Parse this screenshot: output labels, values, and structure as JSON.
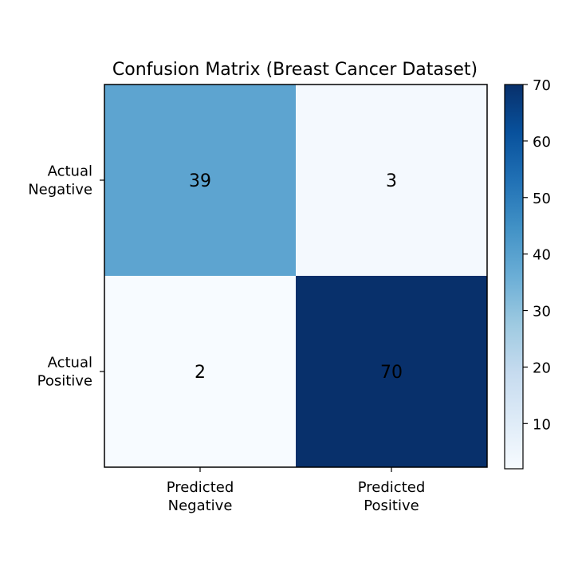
{
  "chart_data": {
    "type": "heatmap",
    "title": "Confusion Matrix (Breast Cancer Dataset)",
    "xlabel": "",
    "ylabel": "",
    "x_categories": [
      [
        "Predicted",
        "Negative"
      ],
      [
        "Predicted",
        "Positive"
      ]
    ],
    "y_categories": [
      [
        "Actual",
        "Negative"
      ],
      [
        "Actual",
        "Positive"
      ]
    ],
    "values": [
      [
        39,
        3
      ],
      [
        2,
        70
      ]
    ],
    "colormap": "Blues",
    "color_range": [
      2,
      70
    ],
    "colorbar": {
      "ticks": [
        10,
        20,
        30,
        40,
        50,
        60,
        70
      ],
      "position": "right"
    },
    "colors": {
      "min": "#f7fbff",
      "max": "#08306b"
    },
    "grid": false
  }
}
